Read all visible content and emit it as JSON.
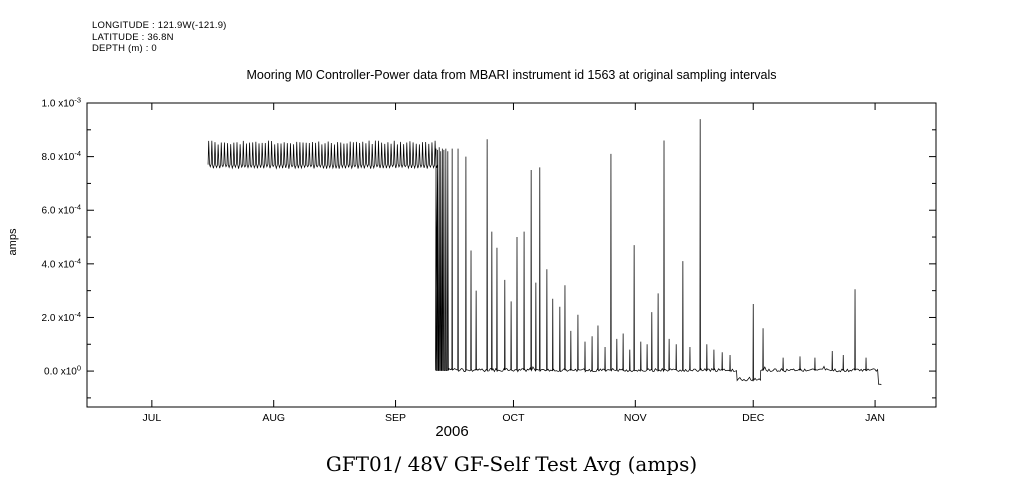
{
  "metadata": {
    "longitude": "LONGITUDE : 121.9W(-121.9)",
    "latitude": "LATITUDE : 36.8N",
    "depth": "DEPTH (m) : 0"
  },
  "bottom_title": "GFT01/ 48V GF-Self Test Avg (amps)",
  "chart_data": {
    "type": "line",
    "title": "Mooring M0 Controller-Power data from MBARI instrument id 1563 at original sampling intervals",
    "xlabel": "2006",
    "ylabel": "amps",
    "line_color": "#000000",
    "grid": false,
    "x_unit": "day_of_year_2006",
    "xlim": [
      165.5,
      381.5
    ],
    "ylim": [
      -0.000134,
      0.001
    ],
    "x_ticks": [
      {
        "day": 182,
        "label": "JUL"
      },
      {
        "day": 213,
        "label": "AUG"
      },
      {
        "day": 244,
        "label": "SEP"
      },
      {
        "day": 274,
        "label": "OCT"
      },
      {
        "day": 305,
        "label": "NOV"
      },
      {
        "day": 335,
        "label": "DEC"
      },
      {
        "day": 366,
        "label": "JAN"
      }
    ],
    "y_ticks": [
      {
        "value": 0,
        "label": "0.0 x10^0"
      },
      {
        "value": 0.0002,
        "label": "2.0 x10^-4"
      },
      {
        "value": 0.0004,
        "label": "4.0 x10^-4"
      },
      {
        "value": 0.0006,
        "label": "6.0 x10^-4"
      },
      {
        "value": 0.0008,
        "label": "8.0 x10^-4"
      },
      {
        "value": 0.001,
        "label": "1.0 x10^-3"
      }
    ],
    "y_minor_ticks": [
      -0.0001,
      0.0001,
      0.0003,
      0.0005,
      0.0007,
      0.0009
    ],
    "band": {
      "x_start": 196.3,
      "x_end": 254.2,
      "y_base": 0.00077,
      "y_peak": 0.00086,
      "y_trough": 0.000755,
      "period_days": 0.8
    },
    "transition_spikes": [
      [
        254.3,
        0.00083
      ],
      [
        254.7,
        0.000825
      ],
      [
        255.1,
        0.000835
      ],
      [
        255.5,
        0.00082
      ],
      [
        255.9,
        0.00083
      ],
      [
        256.3,
        0.000825
      ],
      [
        256.8,
        0.00083
      ],
      [
        257.3,
        0.00082
      ]
    ],
    "baseline_segments": [
      {
        "x_start": 257.6,
        "x_end": 330.9,
        "y": 4e-06
      },
      {
        "x_start": 330.9,
        "x_end": 336.9,
        "y": -3e-05
      },
      {
        "x_start": 336.9,
        "x_end": 366.9,
        "y": 3e-06
      },
      {
        "x_start": 366.9,
        "x_end": 367.7,
        "y": -5e-05
      }
    ],
    "spikes": [
      [
        258.4,
        0.00083
      ],
      [
        259.9,
        0.00083
      ],
      [
        261.9,
        0.0008
      ],
      [
        263.2,
        0.00045
      ],
      [
        264.5,
        0.0003
      ],
      [
        267.3,
        0.000865
      ],
      [
        268.5,
        0.00052
      ],
      [
        269.8,
        0.00046
      ],
      [
        271.8,
        0.00034
      ],
      [
        273.4,
        0.00026
      ],
      [
        274.9,
        0.0005
      ],
      [
        276.7,
        0.00052
      ],
      [
        278.5,
        0.00075
      ],
      [
        279.7,
        0.00033
      ],
      [
        280.7,
        0.00076
      ],
      [
        282.5,
        0.00038
      ],
      [
        284.0,
        0.00027
      ],
      [
        285.8,
        0.00024
      ],
      [
        287.1,
        0.00032
      ],
      [
        288.6,
        0.00015
      ],
      [
        290.4,
        0.00021
      ],
      [
        292.2,
        0.00011
      ],
      [
        294.0,
        0.00013
      ],
      [
        295.5,
        0.00017
      ],
      [
        297.3,
        9e-05
      ],
      [
        298.8,
        0.00081
      ],
      [
        300.3,
        0.00012
      ],
      [
        301.9,
        0.00014
      ],
      [
        303.6,
        8e-05
      ],
      [
        304.7,
        0.00047
      ],
      [
        306.4,
        0.00011
      ],
      [
        308.0,
        0.0001
      ],
      [
        309.2,
        0.00022
      ],
      [
        310.8,
        0.00029
      ],
      [
        312.3,
        0.00086
      ],
      [
        313.6,
        0.00012
      ],
      [
        315.4,
        0.0001
      ],
      [
        317.1,
        0.00041
      ],
      [
        318.9,
        9e-05
      ],
      [
        321.5,
        0.00094
      ],
      [
        323.2,
        0.0001
      ],
      [
        325.0,
        8e-05
      ],
      [
        327.1,
        7e-05
      ],
      [
        329.1,
        6e-05
      ],
      [
        335.0,
        0.00025
      ],
      [
        337.5,
        0.00016
      ],
      [
        342.6,
        5e-05
      ],
      [
        346.9,
        5.5e-05
      ],
      [
        350.7,
        5e-05
      ],
      [
        355.1,
        7.5e-05
      ],
      [
        357.9,
        6e-05
      ],
      [
        360.9,
        0.000305
      ],
      [
        363.7,
        5e-05
      ]
    ]
  }
}
